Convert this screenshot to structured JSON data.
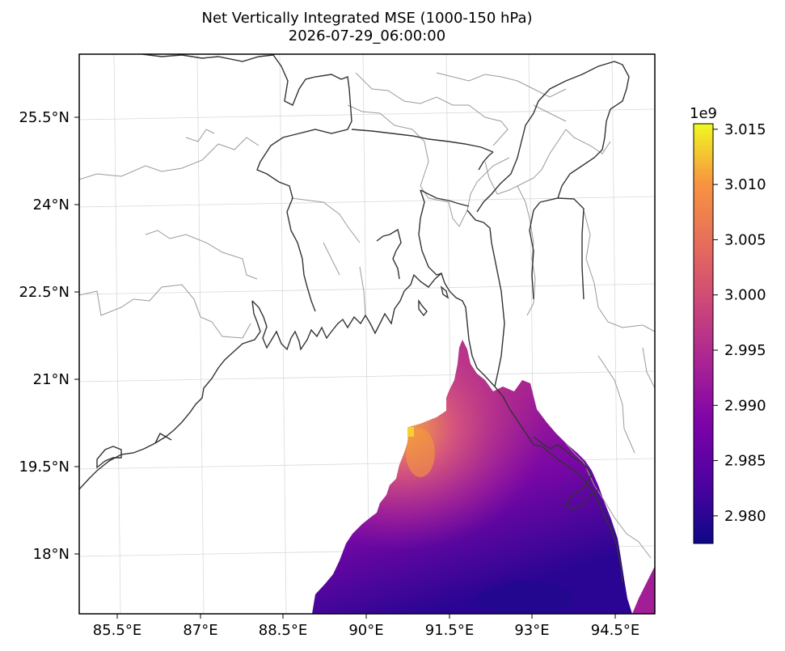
{
  "title": {
    "line1": "Net Vertically Integrated MSE (1000-150 hPa)",
    "line2": "2026-07-29_06:00:00"
  },
  "map": {
    "lon_ticks": [
      "85.5°E",
      "87°E",
      "88.5°E",
      "90°E",
      "91.5°E",
      "93°E",
      "94.5°E"
    ],
    "lat_ticks": [
      "25.5°N",
      "24°N",
      "22.5°N",
      "21°N",
      "19.5°N",
      "18°N"
    ],
    "colors": {
      "coastline": "#333333",
      "admin_boundaries": "#9a9a9a",
      "gridlines": "#d9d9d9"
    }
  },
  "colorbar": {
    "colormap": "plasma",
    "exponent_label": "1e9",
    "tick_labels": [
      "3.015",
      "3.010",
      "3.005",
      "3.000",
      "2.995",
      "2.990",
      "2.985",
      "2.980"
    ],
    "min": 2.9775,
    "max": 3.0155
  }
}
